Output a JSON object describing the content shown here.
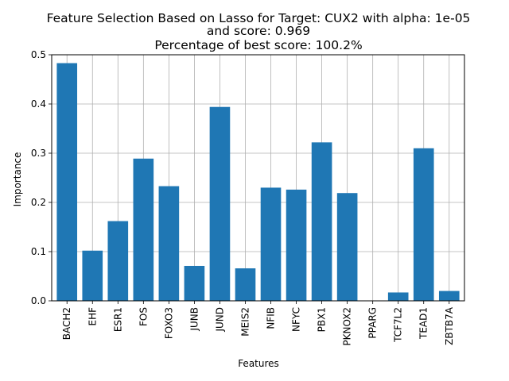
{
  "chart_data": {
    "type": "bar",
    "title_lines": [
      "Feature Selection Based on Lasso for Target: CUX2 with alpha: 1e-05",
      "and score: 0.969",
      "Percentage of best score: 100.2%"
    ],
    "xlabel": "Features",
    "ylabel": "Importance",
    "categories": [
      "BACH2",
      "EHF",
      "ESR1",
      "FOS",
      "FOXO3",
      "JUNB",
      "JUND",
      "MEIS2",
      "NFIB",
      "NFYC",
      "PBX1",
      "PKNOX2",
      "PPARG",
      "TCF7L2",
      "TEAD1",
      "ZBTB7A"
    ],
    "values": [
      0.483,
      0.102,
      0.162,
      0.289,
      0.233,
      0.071,
      0.394,
      0.066,
      0.23,
      0.226,
      0.322,
      0.219,
      0.0,
      0.017,
      0.31,
      0.02
    ],
    "ylim": [
      0,
      0.5
    ],
    "yticks": [
      0.0,
      0.1,
      0.2,
      0.3,
      0.4,
      0.5
    ],
    "ytick_labels": [
      "0.0",
      "0.1",
      "0.2",
      "0.3",
      "0.4",
      "0.5"
    ],
    "grid": true,
    "bar_color": "#1f77b4",
    "grid_color": "#b0b0b0"
  }
}
